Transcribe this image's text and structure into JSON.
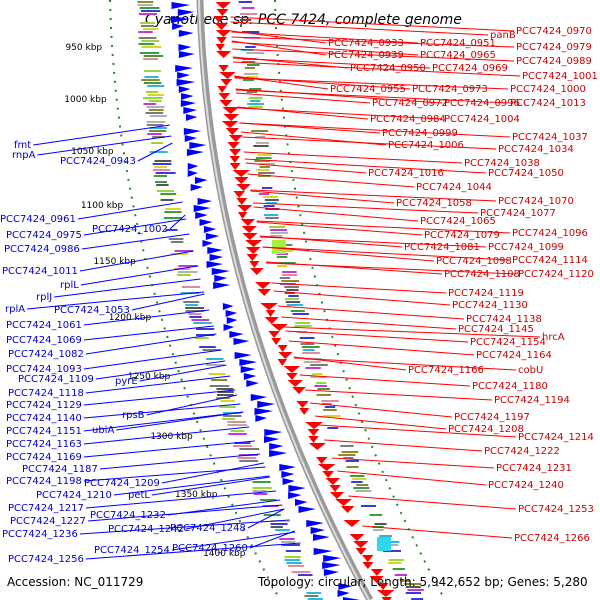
{
  "title": "Cyanothece sp. PCC 7424, complete genome",
  "footer": {
    "accession": "Accession: NC_011729",
    "summary": "Topology: circular; Length: 5,942,652 bp; Genes: 5,280"
  },
  "scale_labels": [
    "950 kbp",
    "1000 kbp",
    "1050 kbp",
    "1100 kbp",
    "1150 kbp",
    "1200 kbp",
    "1250 kbp",
    "1300 kbp",
    "1350 kbp",
    "1400 kbp"
  ],
  "left_labels": [
    "fmt",
    "rnpA",
    "PCC7424_0943",
    "PCC7424_0961",
    "PCC7424_0975",
    "PCC7424_0986",
    "PCC7424_1002",
    "PCC7424_1011",
    "rplL",
    "rplJ",
    "rplA",
    "PCC7424_1053",
    "PCC7424_1061",
    "PCC7424_1069",
    "PCC7424_1082",
    "PCC7424_1093",
    "PCC7424_1109",
    "PCC7424_1118",
    "pyrE",
    "PCC7424_1129",
    "PCC7424_1140",
    "rpsB",
    "PCC7424_1151",
    "ubiA",
    "PCC7424_1163",
    "PCC7424_1169",
    "PCC7424_1187",
    "PCC7424_1198",
    "PCC7424_1209",
    "PCC7424_1210",
    "petL",
    "PCC7424_1217",
    "PCC7424_1227",
    "PCC7424_1232",
    "PCC7424_1236",
    "PCC7424_1242",
    "PCC7424_1248",
    "PCC7424_1254",
    "PCC7424_1260",
    "PCC7424_1256"
  ],
  "right_labels": [
    "PCC7424_0970",
    "panB",
    "PCC7424_0933",
    "PCC7424_0951",
    "PCC7424_0979",
    "PCC7424_0939",
    "PCC7424_0965",
    "PCC7424_0989",
    "PCC7424_0950",
    "PCC7424_0969",
    "PCC7424_1001",
    "PCC7424_0955",
    "PCC7424_0973",
    "PCC7424_1000",
    "PCC7424_0972",
    "PCC7424_0996",
    "PCC7424_1013",
    "PCC7424_0984",
    "PCC7424_1004",
    "PCC7424_0999",
    "PCC7424_1037",
    "PCC7424_1006",
    "PCC7424_1034",
    "PCC7424_1038",
    "PCC7424_1016",
    "PCC7424_1050",
    "PCC7424_1044",
    "PCC7424_1058",
    "PCC7424_1070",
    "PCC7424_1077",
    "PCC7424_1065",
    "PCC7424_1079",
    "PCC7424_1096",
    "PCC7424_1081",
    "PCC7424_1099",
    "PCC7424_1098",
    "PCC7424_1114",
    "PCC7424_1108",
    "PCC7424_1120",
    "PCC7424_1119",
    "PCC7424_1130",
    "PCC7424_1138",
    "PCC7424_1145",
    "PCC7424_1154",
    "hrcA",
    "PCC7424_1164",
    "PCC7424_1166",
    "cobU",
    "PCC7424_1180",
    "PCC7424_1194",
    "PCC7424_1197",
    "PCC7424_1208",
    "PCC7424_1214",
    "PCC7424_1222",
    "PCC7424_1231",
    "PCC7424_1240",
    "PCC7424_1253",
    "PCC7424_1266"
  ],
  "colors": {
    "forward_strand": "#0000ff",
    "reverse_strand": "#ff0000",
    "backbone": "#9a9a9a",
    "tick_dots": "#228822"
  }
}
